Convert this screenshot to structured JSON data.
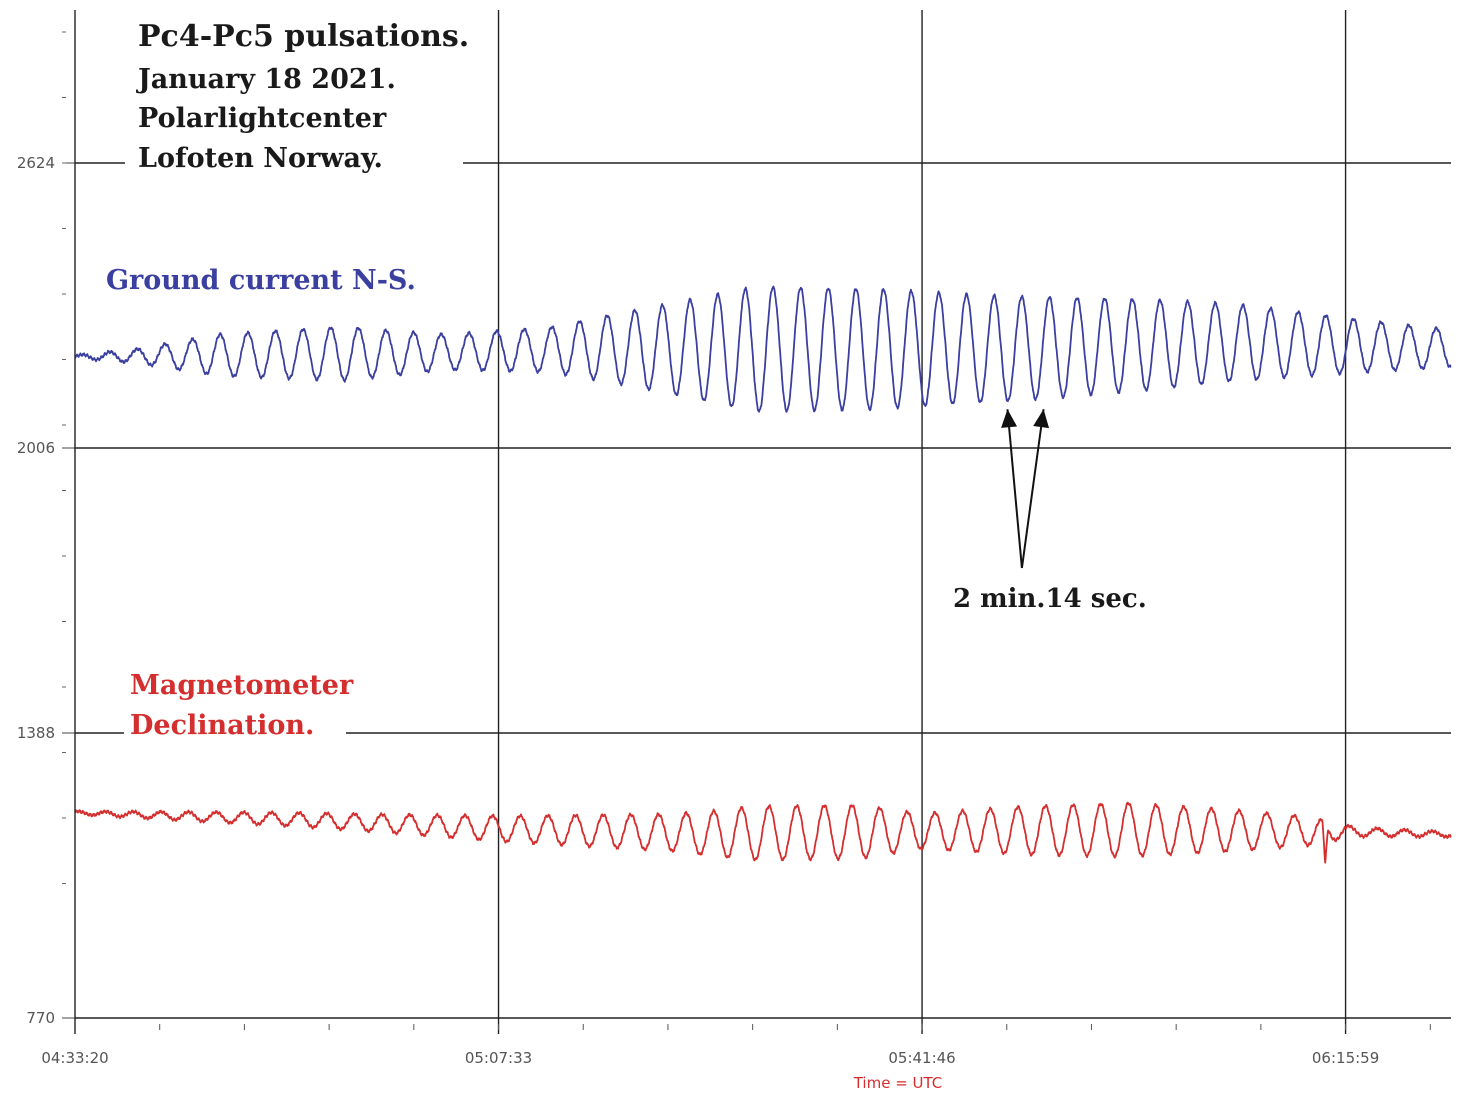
{
  "chart_data": {
    "type": "line",
    "title_lines": [
      "Pc4-Pc5 pulsations.",
      "January 18  2021.",
      "Polarlightcenter",
      "Lofoten Norway."
    ],
    "xlabel": "Time = UTC",
    "ylabel": "",
    "x_ticks": [
      "04:33:20",
      "05:07:33",
      "05:41:46",
      "06:15:59"
    ],
    "x_tick_seconds": [
      16400,
      18453,
      20506,
      22559
    ],
    "xlim_seconds": [
      16400,
      23070
    ],
    "y_ticks": [
      "770",
      "1388",
      "2006",
      "2624"
    ],
    "y_tick_values": [
      770,
      1388,
      2006,
      2624
    ],
    "ylim": [
      770,
      2800
    ],
    "grid": true,
    "series": [
      {
        "name": "Ground current N-S.",
        "color": "#3a3fa0",
        "baseline": 2204,
        "period_seconds": 134,
        "amplitude_profile_seconds": [
          16400,
          16700,
          17100,
          17700,
          18200,
          18700,
          19200,
          19700,
          20300,
          20700,
          21100,
          21600,
          22100,
          22600,
          23070
        ],
        "amplitude_profile_values": [
          3,
          15,
          45,
          58,
          38,
          48,
          90,
          135,
          130,
          118,
          110,
          98,
          80,
          58,
          40
        ],
        "baseline_profile_seconds": [
          16400,
          18000,
          19000,
          20000,
          21000,
          22000,
          23070
        ],
        "baseline_profile_values": [
          2204,
          2212,
          2222,
          2220,
          2222,
          2235,
          2222
        ]
      },
      {
        "name": "Magnetometer Declination.",
        "color": "#d42e2e",
        "baseline": 1190,
        "period_seconds": 134,
        "amplitude_profile_seconds": [
          16400,
          17000,
          17800,
          18500,
          19300,
          19700,
          20200,
          20500,
          21000,
          21500,
          22000,
          22400,
          22600,
          23070
        ],
        "amplitude_profile_values": [
          3,
          10,
          18,
          28,
          40,
          58,
          58,
          38,
          52,
          58,
          45,
          30,
          10,
          5
        ],
        "baseline_profile_seconds": [
          16400,
          17500,
          18500,
          19500,
          20500,
          21500,
          22500,
          23070
        ],
        "baseline_profile_values": [
          1215,
          1200,
          1180,
          1170,
          1175,
          1178,
          1175,
          1168
        ],
        "spike": {
          "seconds": 22460,
          "value": 1090
        }
      }
    ],
    "annotations": [
      {
        "text": "2 min.14 sec.",
        "arrow_targets_seconds": [
          20920,
          21095
        ],
        "arrow_target_values": [
          2090,
          2090
        ]
      }
    ]
  }
}
